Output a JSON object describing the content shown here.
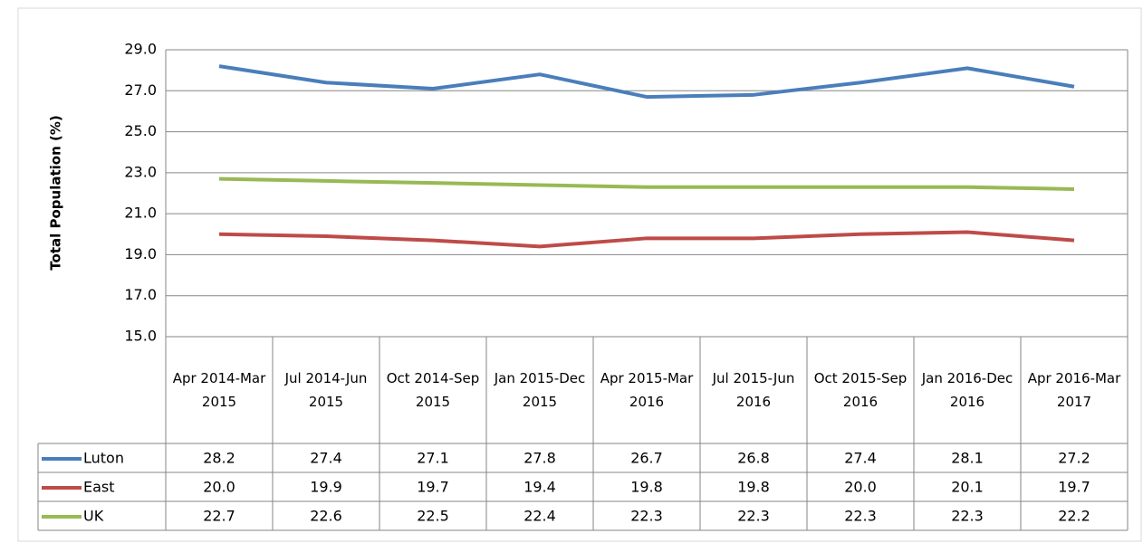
{
  "chart_data": {
    "type": "line",
    "y_label": "Total Population (%)",
    "categories": [
      "Apr 2014-Mar 2015",
      "Jul 2014-Jun 2015",
      "Oct 2014-Sep 2015",
      "Jan 2015-Dec 2015",
      "Apr 2015-Mar 2016",
      "Jul 2015-Jun 2016",
      "Oct 2015-Sep 2016",
      "Jan 2016-Dec 2016",
      "Apr 2016-Mar 2017"
    ],
    "series": [
      {
        "name": "Luton",
        "color": "#4a7ebb",
        "values": [
          28.2,
          27.4,
          27.1,
          27.8,
          26.7,
          26.8,
          27.4,
          28.1,
          27.2
        ],
        "value_labels": [
          "28.2",
          "27.4",
          "27.1",
          "27.8",
          "26.7",
          "26.8",
          "27.4",
          "28.1",
          "27.2"
        ]
      },
      {
        "name": "East",
        "color": "#be4b48",
        "values": [
          20.0,
          19.9,
          19.7,
          19.4,
          19.8,
          19.8,
          20.0,
          20.1,
          19.7
        ],
        "value_labels": [
          "20.0",
          "19.9",
          "19.7",
          "19.4",
          "19.8",
          "19.8",
          "20.0",
          "20.1",
          "19.7"
        ]
      },
      {
        "name": "UK",
        "color": "#98b954",
        "values": [
          22.7,
          22.6,
          22.5,
          22.4,
          22.3,
          22.3,
          22.3,
          22.3,
          22.2
        ],
        "value_labels": [
          "22.7",
          "22.6",
          "22.5",
          "22.4",
          "22.3",
          "22.3",
          "22.3",
          "22.3",
          "22.2"
        ]
      }
    ],
    "ylim": [
      15,
      29
    ],
    "yticks": [
      {
        "value": 15,
        "label": "15.0"
      },
      {
        "value": 17,
        "label": "17.0"
      },
      {
        "value": 19,
        "label": "19.0"
      },
      {
        "value": 21,
        "label": "21.0"
      },
      {
        "value": 23,
        "label": "23.0"
      },
      {
        "value": 25,
        "label": "25.0"
      },
      {
        "value": 27,
        "label": "27.0"
      },
      {
        "value": 29,
        "label": "29.0"
      }
    ],
    "grid": true
  }
}
